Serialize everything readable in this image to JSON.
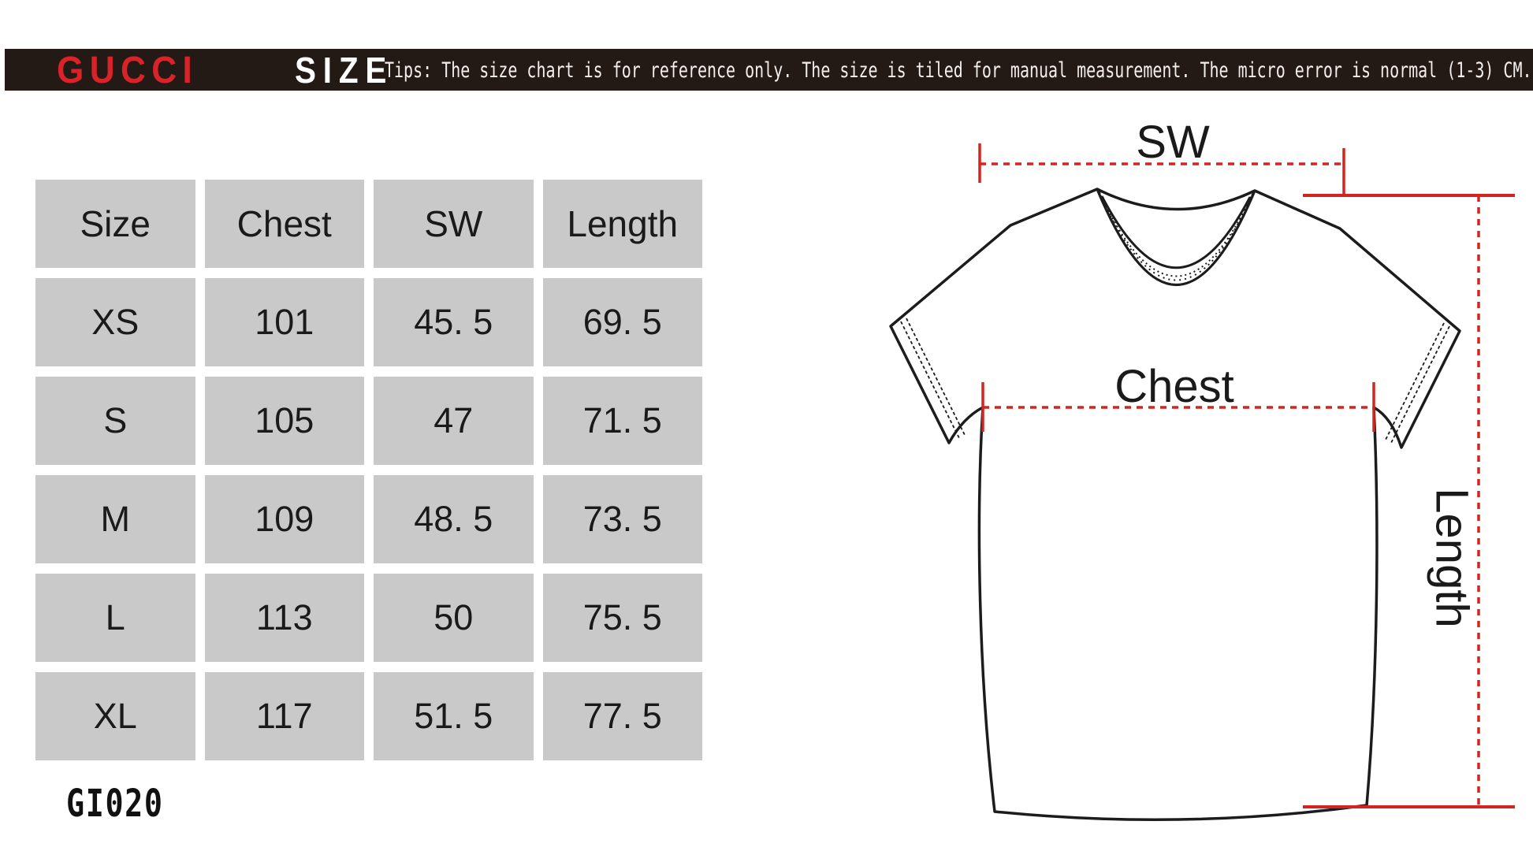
{
  "header": {
    "brand": "GUCCI",
    "title": "SIZE",
    "tips": "Tips: The size chart is for reference only. The size is tiled for manual measurement. The micro error is normal (1-3) CM."
  },
  "size_table": {
    "columns": [
      "Size",
      "Chest",
      "SW",
      "Length"
    ],
    "rows": [
      [
        "XS",
        "101",
        "45. 5",
        "69. 5"
      ],
      [
        "S",
        "105",
        "47",
        "71. 5"
      ],
      [
        "M",
        "109",
        "48. 5",
        "73. 5"
      ],
      [
        "L",
        "113",
        "50",
        "75. 5"
      ],
      [
        "XL",
        "117",
        "51. 5",
        "77. 5"
      ]
    ]
  },
  "style_code": "GI020",
  "diagram": {
    "sw_label": "SW",
    "chest_label": "Chest",
    "length_label": "Length"
  },
  "chart_data": {
    "type": "table",
    "title": "GUCCI size chart (CM)",
    "columns": [
      "Size",
      "Chest",
      "SW",
      "Length"
    ],
    "rows": [
      [
        "XS",
        101,
        45.5,
        69.5
      ],
      [
        "S",
        105,
        47,
        71.5
      ],
      [
        "M",
        109,
        48.5,
        73.5
      ],
      [
        "L",
        113,
        50,
        75.5
      ],
      [
        "XL",
        117,
        51.5,
        77.5
      ]
    ],
    "units": "CM"
  },
  "colors": {
    "bar_bg": "#241a15",
    "brand_red": "#d8232a",
    "title_white": "#ffffff",
    "tips_white": "#f2efee",
    "cell_gray": "#c9c9c9",
    "cell_ink": "#1a1a1a",
    "measure_red": "#d2251f",
    "outline_ink": "#1c1c1c",
    "code_ink": "#111111"
  }
}
